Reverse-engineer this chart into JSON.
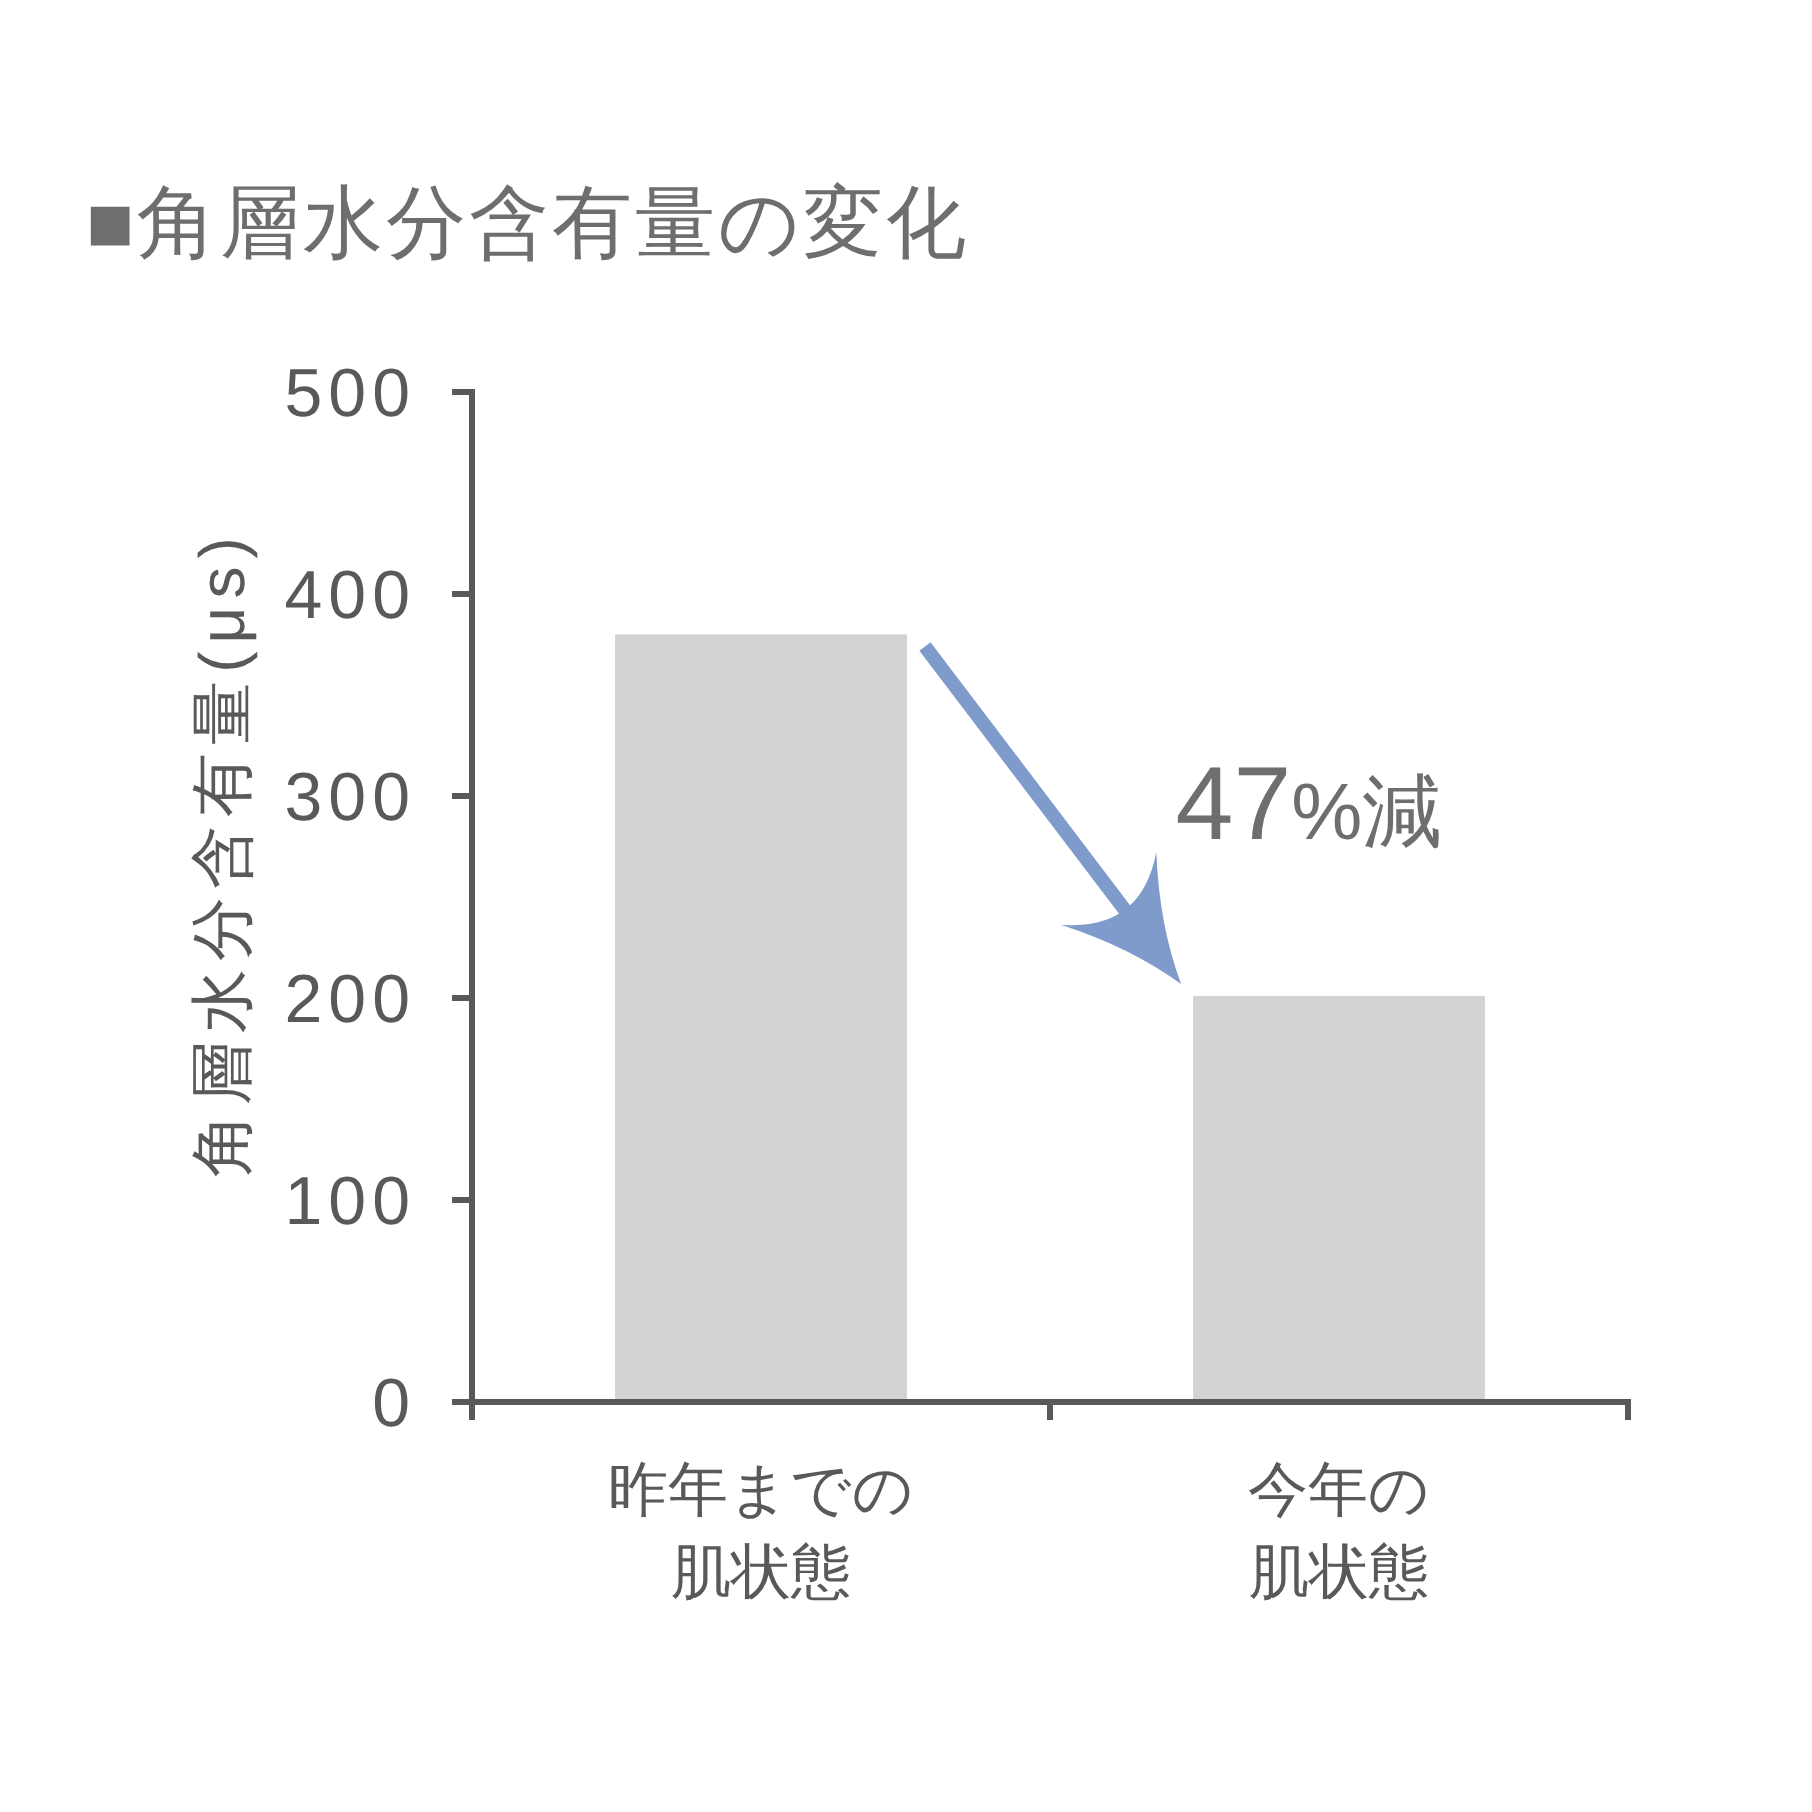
{
  "chart_data": {
    "type": "bar",
    "title": "■角層水分含有量の変化",
    "ylabel": "角層水分含有量(μs)",
    "categories": [
      "昨年までの肌状態",
      "今年の肌状態"
    ],
    "values": [
      380,
      201
    ],
    "color": "#d3d3d3",
    "ylim": [
      0,
      500
    ],
    "yticks": [
      0,
      100,
      200,
      300,
      400,
      500
    ],
    "annotations": [
      "47%減"
    ]
  }
}
